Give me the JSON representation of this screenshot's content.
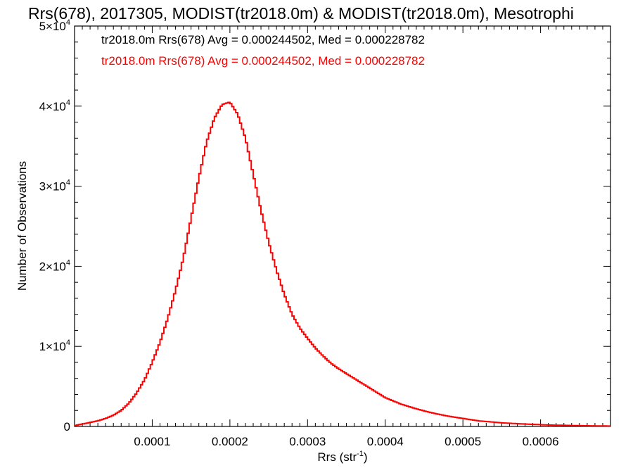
{
  "chart_data": {
    "type": "line",
    "title": "Rrs(678), 2017305, MODIST(tr2018.0m) & MODIST(tr2018.0m), Mesotrophi",
    "xlabel": "Rrs (str",
    "xlabel_sup": "-1",
    "xlabel_close": ")",
    "ylabel": "Number of Observations",
    "xlim": [
      0.0,
      0.00069
    ],
    "ylim": [
      0,
      50000
    ],
    "x_ticks": [
      0.0001,
      0.0002,
      0.0003,
      0.0004,
      0.0005,
      0.0006
    ],
    "x_tick_labels": [
      "0.0001",
      "0.0002",
      "0.0003",
      "0.0004",
      "0.0005",
      "0.0006"
    ],
    "y_ticks": [
      0,
      10000,
      20000,
      30000,
      40000,
      50000
    ],
    "y_tick_labels": [
      {
        "base": "0",
        "exp": ""
      },
      {
        "base": "1×10",
        "exp": "4"
      },
      {
        "base": "2×10",
        "exp": "4"
      },
      {
        "base": "3×10",
        "exp": "4"
      },
      {
        "base": "4×10",
        "exp": "4"
      },
      {
        "base": "5×10",
        "exp": "4"
      }
    ],
    "legend_placement": "top-left",
    "legend": [
      {
        "text": "tr2018.0m Rrs(678) Avg = 0.000244502, Med = 0.000228782",
        "color": "#000000"
      },
      {
        "text": "tr2018.0m Rrs(678) Avg = 0.000244502, Med = 0.000228782",
        "color": "#ff0000"
      }
    ],
    "grid": false,
    "series": [
      {
        "color": "#ff0000",
        "style": "step",
        "x": [
          0.0,
          1e-05,
          2e-05,
          3e-05,
          4e-05,
          5e-05,
          6e-05,
          7e-05,
          8e-05,
          9e-05,
          0.0001,
          0.00011,
          0.00012,
          0.00013,
          0.00014,
          0.00015,
          0.00016,
          0.00017,
          0.00018,
          0.00019,
          0.0002,
          0.00021,
          0.00022,
          0.00023,
          0.00024,
          0.00025,
          0.00026,
          0.00027,
          0.00028,
          0.00029,
          0.0003,
          0.00031,
          0.00032,
          0.00033,
          0.00034,
          0.00035,
          0.00036,
          0.00037,
          0.00038,
          0.00039,
          0.0004,
          0.00042,
          0.00044,
          0.00046,
          0.00048,
          0.0005,
          0.00052,
          0.00055,
          0.00058,
          0.00061,
          0.00065,
          0.00069
        ],
        "y": [
          100,
          300,
          500,
          700,
          1000,
          1400,
          2000,
          2900,
          4200,
          5800,
          8000,
          10500,
          13500,
          17000,
          21000,
          26000,
          31000,
          35500,
          38500,
          40200,
          40500,
          39000,
          36000,
          31500,
          27000,
          23000,
          19500,
          16500,
          14000,
          12300,
          11000,
          9800,
          8800,
          7900,
          7200,
          6600,
          6000,
          5400,
          4800,
          4200,
          3600,
          2800,
          2200,
          1700,
          1300,
          1000,
          700,
          450,
          300,
          180,
          100,
          50
        ]
      }
    ]
  }
}
